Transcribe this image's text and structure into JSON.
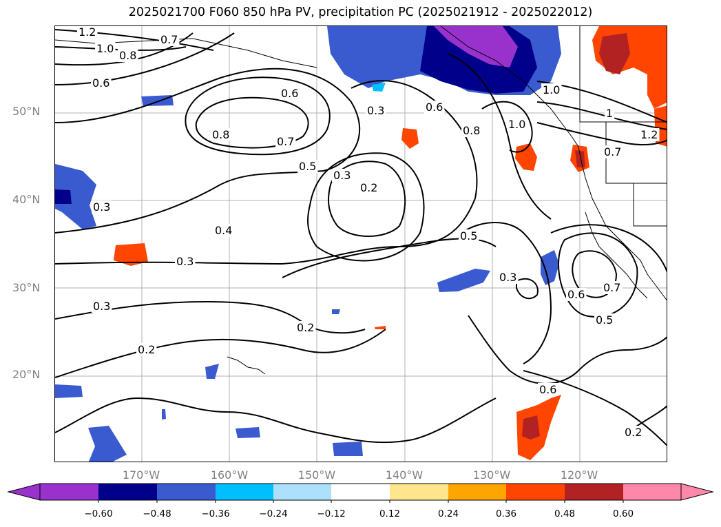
{
  "title": "2025021700 F060 850 hPa PV, precipitation PC (2025021912 - 2025022012)",
  "lat_labels": [
    "50°N",
    "40°N",
    "30°N",
    "20°N"
  ],
  "lon_labels": [
    "170°W",
    "160°W",
    "150°W",
    "140°W",
    "130°W",
    "120°W"
  ],
  "contour_labels": [
    "1.2",
    "1.0",
    "0.8",
    "0.7",
    "0.6",
    "0.6",
    "0.8",
    "0.7",
    "0.5",
    "0.3",
    "0.3",
    "0.6",
    "0.8",
    "1.0",
    "1.0",
    "0.3",
    "0.2",
    "0.4",
    "0.5",
    "0.3",
    "0.3",
    "0.6",
    "0.7",
    "0.5",
    "0.2",
    "0.2",
    "0.6",
    "0.2",
    "0.7",
    "1.2",
    "1",
    "0.3"
  ],
  "colorbar": {
    "ticks": [
      "−0.60",
      "−0.48",
      "−0.36",
      "−0.24",
      "−0.12",
      "0.12",
      "0.24",
      "0.36",
      "0.48",
      "0.60"
    ],
    "colors": [
      "#9932CC",
      "#00008B",
      "#3A5BCF",
      "#00BFFF",
      "#ADE0FA",
      "#FFFFFF",
      "#FFE68C",
      "#FFA500",
      "#FF4500",
      "#B22222",
      "#FF88AA"
    ]
  }
}
